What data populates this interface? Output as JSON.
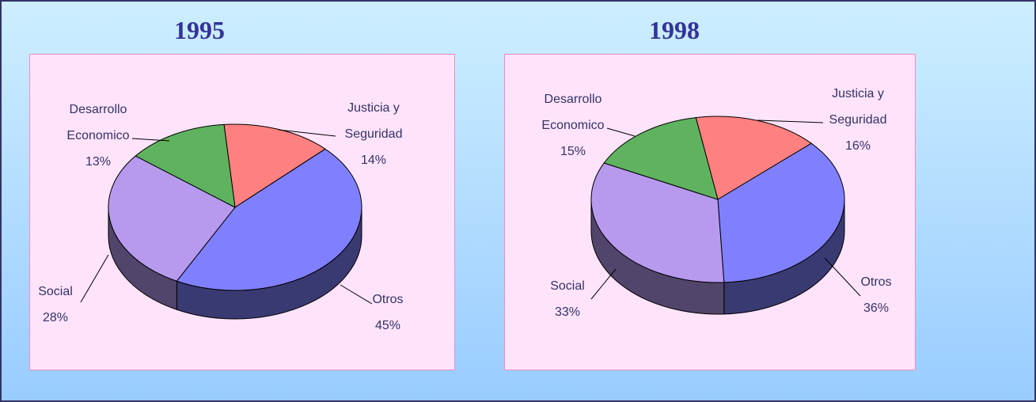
{
  "chart_data": [
    {
      "type": "pie",
      "title": "1995",
      "categories": [
        "Justicia y Seguridad",
        "Otros",
        "Social",
        "Desarrollo Economico"
      ],
      "values": [
        14,
        45,
        28,
        13
      ],
      "value_labels": [
        "14%",
        "45%",
        "28%",
        "13%"
      ],
      "colors": [
        "#ff8080",
        "#8080ff",
        "#b79aee",
        "#5fb35f"
      ]
    },
    {
      "type": "pie",
      "title": "1998",
      "categories": [
        "Justicia y Seguridad",
        "Otros",
        "Social",
        "Desarrollo Economico"
      ],
      "values": [
        16,
        36,
        33,
        15
      ],
      "value_labels": [
        "16%",
        "36%",
        "33%",
        "15%"
      ],
      "colors": [
        "#ff8080",
        "#8080ff",
        "#b79aee",
        "#5fb35f"
      ]
    }
  ]
}
